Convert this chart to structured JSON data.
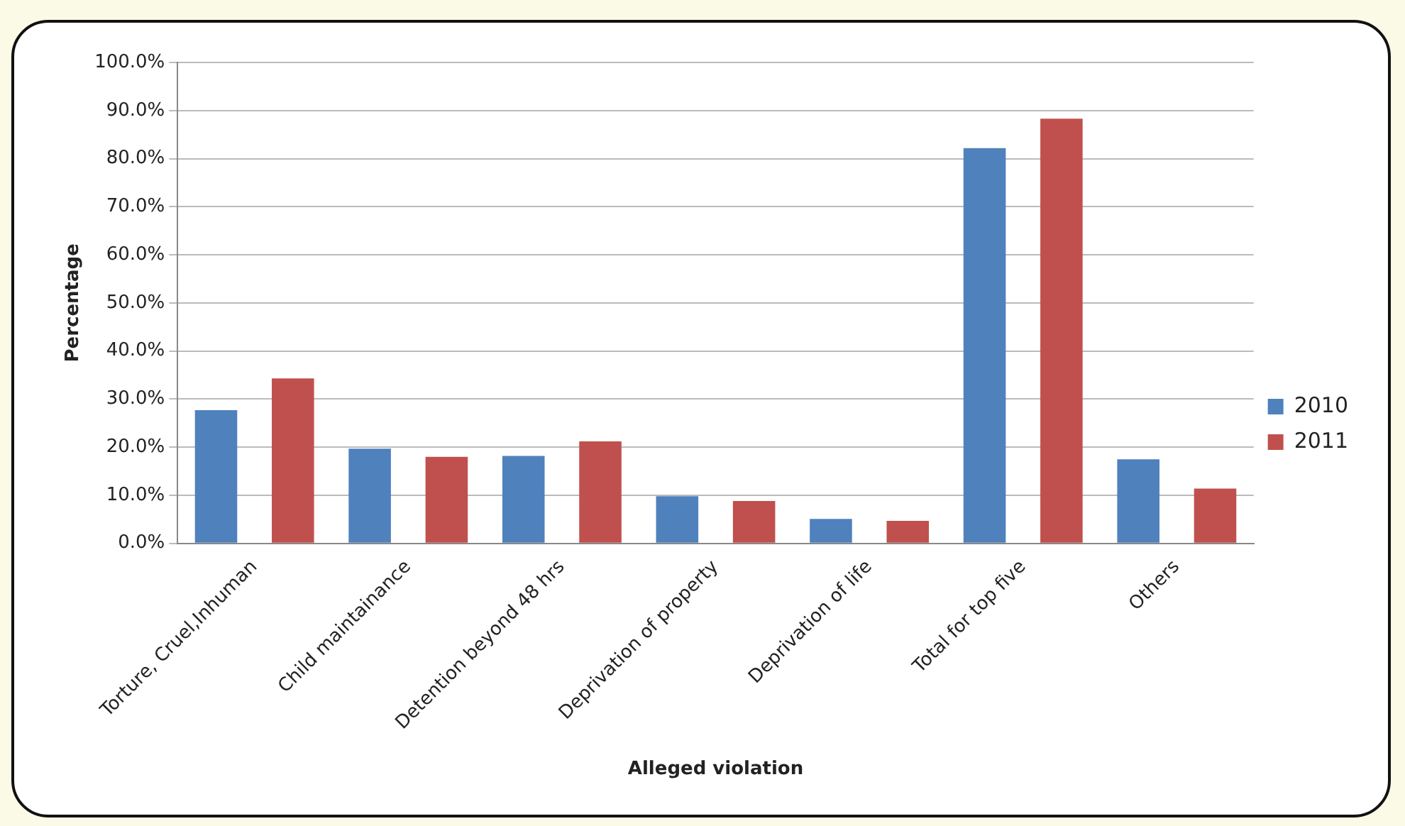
{
  "chart_data": {
    "type": "bar",
    "xlabel": "Alleged violation",
    "ylabel": "Percentage",
    "categories": [
      "Torture, Cruel,Inhuman",
      "Child maintainance",
      "Detention beyond 48 hrs",
      "Deprivation of property",
      "Deprivation of life",
      "Total for top five",
      "Others"
    ],
    "series": [
      {
        "name": "2010",
        "color": "#4f81bd",
        "values": [
          27.7,
          19.7,
          18.2,
          9.8,
          5.1,
          82.2,
          17.5
        ]
      },
      {
        "name": "2011",
        "color": "#c0504d",
        "values": [
          34.3,
          18.0,
          21.2,
          8.8,
          4.7,
          88.3,
          11.4
        ]
      }
    ],
    "ylim": [
      0,
      100
    ],
    "yticks": [
      {
        "value": 0,
        "label": "0.0%"
      },
      {
        "value": 10,
        "label": "10.0%"
      },
      {
        "value": 20,
        "label": "20.0%"
      },
      {
        "value": 30,
        "label": "30.0%"
      },
      {
        "value": 40,
        "label": "40.0%"
      },
      {
        "value": 50,
        "label": "50.0%"
      },
      {
        "value": 60,
        "label": "60.0%"
      },
      {
        "value": 70,
        "label": "70.0%"
      },
      {
        "value": 80,
        "label": "80.0%"
      },
      {
        "value": 90,
        "label": "90.0%"
      },
      {
        "value": 100,
        "label": "100.0%"
      }
    ],
    "grid": "y",
    "legend": "right"
  }
}
